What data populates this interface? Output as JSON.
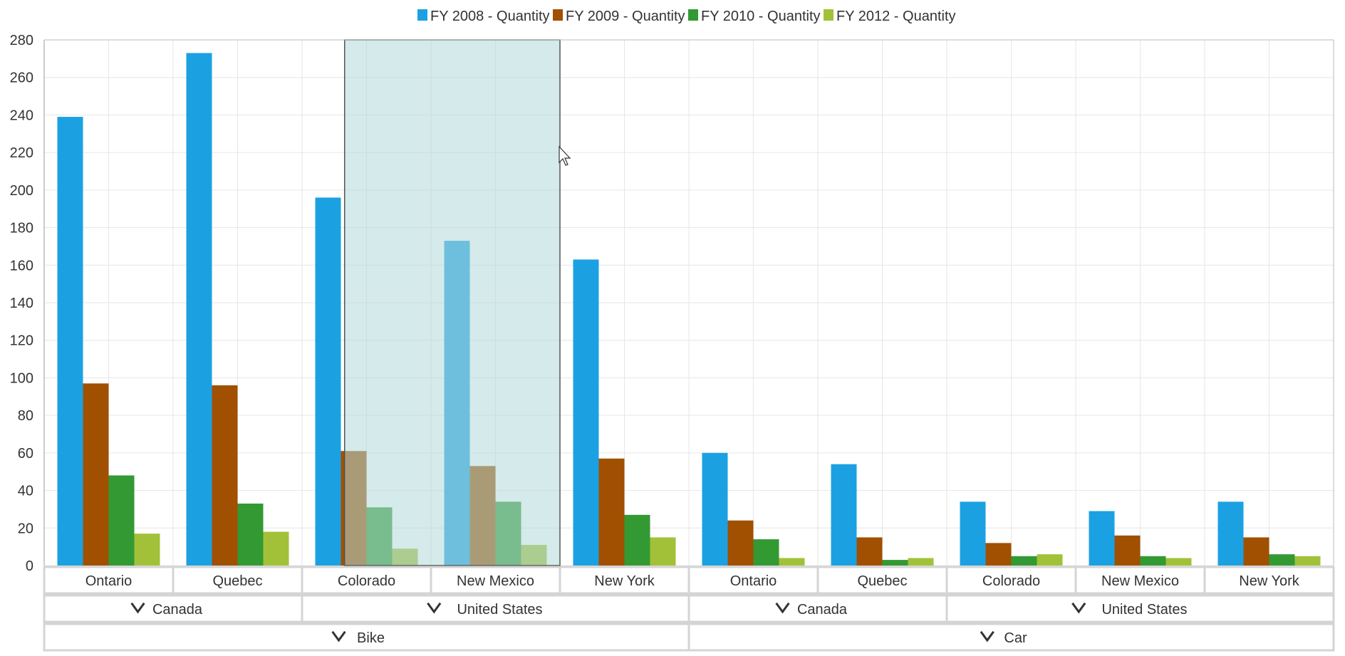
{
  "chart_data": {
    "type": "bar",
    "title": "",
    "xlabel": "",
    "ylabel": "",
    "ylim": [
      0,
      280
    ],
    "yticks": [
      0,
      20,
      40,
      60,
      80,
      100,
      120,
      140,
      160,
      180,
      200,
      220,
      240,
      260,
      280
    ],
    "grid": true,
    "legend_position": "top-center",
    "categories": [
      "Ontario",
      "Quebec",
      "Colorado",
      "New Mexico",
      "New York",
      "Ontario",
      "Quebec",
      "Colorado",
      "New Mexico",
      "New York"
    ],
    "series": [
      {
        "name": "FY 2008 - Quantity",
        "color": "#1ba1e2",
        "values": [
          239,
          273,
          196,
          173,
          163,
          60,
          54,
          34,
          29,
          34
        ]
      },
      {
        "name": "FY 2009 - Quantity",
        "color": "#a05000",
        "values": [
          97,
          96,
          61,
          53,
          57,
          24,
          15,
          12,
          16,
          15
        ]
      },
      {
        "name": "FY 2010 - Quantity",
        "color": "#339933",
        "values": [
          48,
          33,
          31,
          34,
          27,
          14,
          3,
          5,
          5,
          6
        ]
      },
      {
        "name": "FY 2012 - Quantity",
        "color": "#a2c139",
        "values": [
          17,
          18,
          9,
          11,
          15,
          4,
          4,
          6,
          4,
          5
        ]
      }
    ],
    "axis_groups": [
      {
        "level": "country",
        "items": [
          {
            "label": "Canada",
            "start": 0,
            "end": 2
          },
          {
            "label": "United States",
            "start": 2,
            "end": 5
          },
          {
            "label": "Canada",
            "start": 5,
            "end": 7
          },
          {
            "label": "United States",
            "start": 7,
            "end": 10
          }
        ]
      },
      {
        "level": "product",
        "items": [
          {
            "label": "Bike",
            "start": 0,
            "end": 5
          },
          {
            "label": "Car",
            "start": 5,
            "end": 10
          }
        ]
      }
    ],
    "selection": {
      "start": 2,
      "end": 4,
      "color": "#b2d8d8"
    }
  }
}
